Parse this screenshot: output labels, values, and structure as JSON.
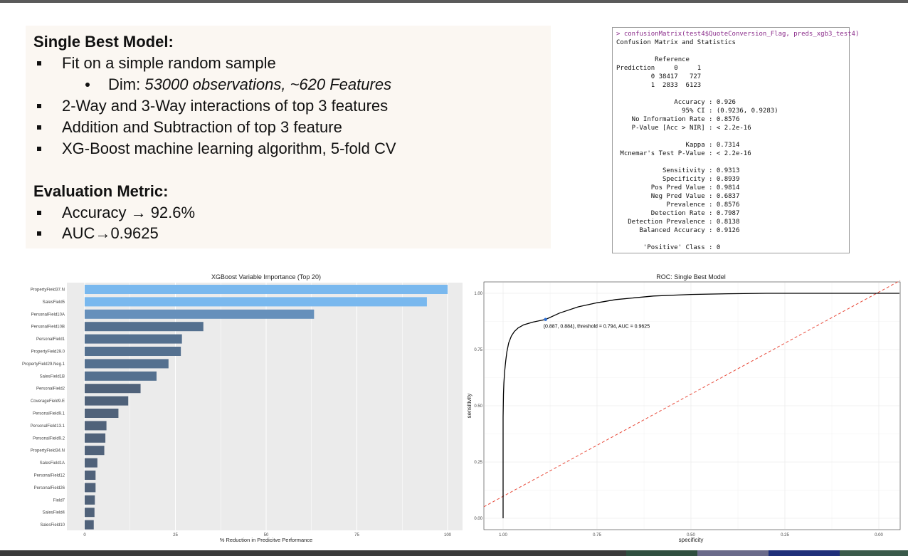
{
  "slide": {
    "model_heading": "Single Best Model:",
    "bullets": [
      "Fit on a simple random sample",
      "2-Way and 3-Way interactions of top 3 features",
      "Addition and Subtraction of top 3 feature",
      "XG-Boost machine learning algorithm, 5-fold CV"
    ],
    "sub_bullet_prefix": "Dim: ",
    "sub_bullet_italic": "53000 observations, ~620 Features",
    "metric_heading": "Evaluation Metric:",
    "metric_bullets": [
      "Accuracy → 92.6%",
      "AUC→0.9625"
    ]
  },
  "console": {
    "command": "> confusionMatrix(test4$QuoteConversion_Flag, preds_xgb3_test4)",
    "lines": [
      "Confusion Matrix and Statistics",
      "",
      "          Reference",
      "Prediction     0     1",
      "         0 38417   727",
      "         1  2833  6123",
      "",
      "               Accuracy : 0.926",
      "                 95% CI : (0.9236, 0.9283)",
      "    No Information Rate : 0.8576",
      "    P-Value [Acc > NIR] : < 2.2e-16",
      "",
      "                  Kappa : 0.7314",
      " Mcnemar's Test P-Value : < 2.2e-16",
      "",
      "            Sensitivity : 0.9313",
      "            Specificity : 0.8939",
      "         Pos Pred Value : 0.9814",
      "         Neg Pred Value : 0.6837",
      "             Prevalence : 0.8576",
      "         Detection Rate : 0.7987",
      "   Detection Prevalence : 0.8138",
      "      Balanced Accuracy : 0.9126",
      "",
      "       'Positive' Class : 0"
    ]
  },
  "colors": {
    "bar_high": "#79b8ee",
    "bar_mid": "#6690bb",
    "bar_low": "#50627a",
    "panel_bg": "#ebebeb",
    "roc_curve": "#000000",
    "diagonal": "#e84a3a",
    "marker": "#2b6ed6"
  },
  "chart_data": [
    {
      "type": "bar",
      "orientation": "horizontal",
      "title": "XGBoost Variable Importance (Top 20)",
      "xlabel": "% Reduction in Predicitve Performance",
      "ylabel": "",
      "xlim": [
        0,
        100
      ],
      "xticks": [
        0,
        25,
        50,
        75,
        100
      ],
      "grid": true,
      "categories": [
        "PropertyField37.N",
        "SalesField5",
        "PersonalField10A",
        "PersonalField10B",
        "PersonalField1",
        "PropertyField29.0",
        "PropertyField29.Neg.1",
        "SalesField1B",
        "PersonalField2",
        "CoverageField9.E",
        "PersonalField9.1",
        "PersonalField13.1",
        "PersonalField9.2",
        "PropertyField34.N",
        "SalesField1A",
        "PersonalField12",
        "PersonalField26",
        "Field7",
        "SalesField4",
        "SalesField10"
      ],
      "values": [
        100,
        94.3,
        63.2,
        32.7,
        26.8,
        26.5,
        23.1,
        19.8,
        15.4,
        12.0,
        9.3,
        6.0,
        5.7,
        5.4,
        3.5,
        3.0,
        3.0,
        2.8,
        2.7,
        2.5
      ]
    },
    {
      "type": "line",
      "title": "ROC: Single Best Model",
      "xlabel": "specificity",
      "ylabel": "sensitivity",
      "xlim": [
        1.0,
        0.0
      ],
      "ylim": [
        0,
        1
      ],
      "xticks": [
        "1.00",
        "0.75",
        "0.50",
        "0.25",
        "0.00"
      ],
      "yticks": [
        "0.00",
        "0.25",
        "0.50",
        "0.75",
        "1.00"
      ],
      "grid": true,
      "series": [
        {
          "x": [
            1.0,
            1.0,
            0.999,
            0.998,
            0.996,
            0.993,
            0.99,
            0.985,
            0.978,
            0.97,
            0.96,
            0.945,
            0.92,
            0.887,
            0.85,
            0.8,
            0.75,
            0.7,
            0.6,
            0.5,
            0.4,
            0.3,
            0.2,
            0.1,
            0.0
          ],
          "y": [
            0.0,
            0.45,
            0.55,
            0.6,
            0.65,
            0.7,
            0.74,
            0.78,
            0.81,
            0.83,
            0.846,
            0.86,
            0.872,
            0.884,
            0.912,
            0.94,
            0.958,
            0.972,
            0.988,
            0.995,
            0.998,
            1.0,
            1.0,
            1.0,
            1.0
          ]
        }
      ],
      "reference_line": {
        "x": [
          1.0,
          0.0
        ],
        "y": [
          0.0,
          1.0
        ]
      },
      "annotation": {
        "x": 0.887,
        "y": 0.884,
        "text": "(0.887, 0.884), threshold = 0.794, AUC = 0.9625"
      }
    }
  ]
}
